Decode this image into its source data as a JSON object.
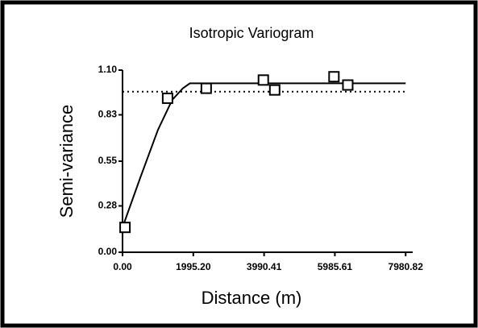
{
  "chart_data": {
    "type": "scatter",
    "title": "Isotropic Variogram",
    "xlabel": "Distance (m)",
    "ylabel": "Semi-variance",
    "x": [
      70,
      1270,
      2360,
      3970,
      4290,
      5960,
      6350
    ],
    "values": [
      0.15,
      0.93,
      0.99,
      1.04,
      0.98,
      1.06,
      1.01
    ],
    "color": "#000000",
    "model": {
      "x": [
        0,
        500,
        1000,
        1400,
        1700,
        1900,
        7980.82
      ],
      "values": [
        0.15,
        0.45,
        0.74,
        0.92,
        0.99,
        1.02,
        1.02
      ]
    },
    "sill": 0.97,
    "xlim": [
      0,
      8180
    ],
    "ylim": [
      0,
      1.1
    ],
    "xticks": [
      {
        "value": 0,
        "label": "0.00"
      },
      {
        "value": 1995.2,
        "label": "1995.20"
      },
      {
        "value": 3990.41,
        "label": "3990.41"
      },
      {
        "value": 5985.61,
        "label": "5985.61"
      },
      {
        "value": 7980.82,
        "label": "7980.82"
      }
    ],
    "yticks": [
      {
        "value": 0,
        "label": "0.00"
      },
      {
        "value": 0.28,
        "label": "0.28"
      },
      {
        "value": 0.55,
        "label": "0.55"
      },
      {
        "value": 0.83,
        "label": "0.83"
      },
      {
        "value": 1.1,
        "label": "1.10"
      }
    ]
  }
}
